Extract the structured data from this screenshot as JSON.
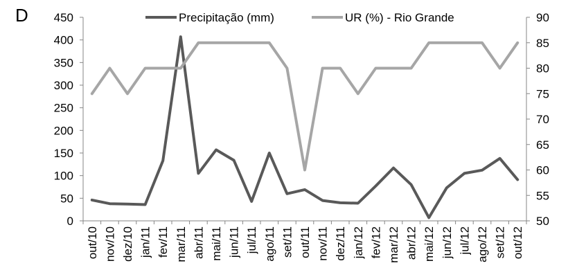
{
  "panel_label": "D",
  "chart_data": {
    "type": "line",
    "categories": [
      "out/10",
      "nov/10",
      "dez/10",
      "jan/11",
      "fev/11",
      "mar/11",
      "abr/11",
      "mai/11",
      "jun/11",
      "jul/11",
      "ago/11",
      "set/11",
      "out/11",
      "nov/11",
      "dez/11",
      "jan/12",
      "fev/12",
      "mar/12",
      "abr/12",
      "mai/12",
      "jun/12",
      "jul/12",
      "ago/12",
      "set/12",
      "out/12"
    ],
    "series": [
      {
        "name": "Precipitação (mm)",
        "axis": "left",
        "color": "#595959",
        "values": [
          46,
          38,
          37,
          36,
          133,
          407,
          105,
          157,
          134,
          43,
          150,
          60,
          69,
          45,
          40,
          39,
          77,
          117,
          80,
          7,
          73,
          105,
          112,
          138,
          91
        ]
      },
      {
        "name": "UR (%) - Rio Grande",
        "axis": "right",
        "color": "#a6a6a6",
        "values": [
          75,
          80,
          75,
          80,
          80,
          80,
          85,
          85,
          85,
          85,
          85,
          80,
          60,
          80,
          80,
          75,
          80,
          80,
          80,
          85,
          85,
          85,
          85,
          80,
          85
        ]
      }
    ],
    "y_left": {
      "min": 0,
      "max": 450,
      "step": 50,
      "ticks": [
        "0",
        "50",
        "100",
        "150",
        "200",
        "250",
        "300",
        "350",
        "400",
        "450"
      ]
    },
    "y_right": {
      "min": 50,
      "max": 90,
      "step": 5,
      "ticks": [
        "50",
        "55",
        "60",
        "65",
        "70",
        "75",
        "80",
        "85",
        "90"
      ]
    },
    "grid": false,
    "legend_position": "top-center"
  }
}
